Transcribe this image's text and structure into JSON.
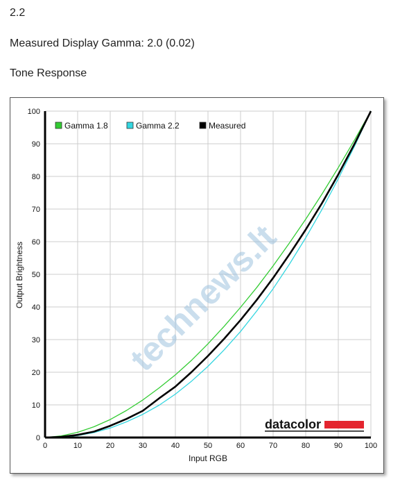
{
  "header": {
    "line1": "2.2",
    "line2": "Measured Display Gamma: 2.0 (0.02)",
    "line3": "Tone Response"
  },
  "logo": {
    "text": "datacolor",
    "bar_color": "#e4252f"
  },
  "watermark": {
    "text": "technews.lt"
  },
  "chart_data": {
    "type": "line",
    "xlabel": "Input RGB",
    "ylabel": "Output Brightness",
    "xlim": [
      0,
      100
    ],
    "ylim": [
      0,
      100
    ],
    "x_ticks": [
      0,
      10,
      20,
      30,
      40,
      50,
      60,
      70,
      80,
      90,
      100
    ],
    "y_ticks": [
      0,
      10,
      20,
      30,
      40,
      50,
      60,
      70,
      80,
      90,
      100
    ],
    "grid": true,
    "legend_position": "top-left",
    "x": [
      0,
      5,
      10,
      15,
      20,
      25,
      30,
      35,
      40,
      45,
      50,
      55,
      60,
      65,
      70,
      75,
      80,
      85,
      90,
      95,
      100
    ],
    "series": [
      {
        "name": "Gamma 1.8",
        "color": "#33cc33",
        "values": [
          0,
          0.5,
          1.6,
          3.3,
          5.5,
          8.3,
          11.5,
          15.2,
          19.2,
          23.7,
          28.7,
          34.1,
          39.9,
          46.0,
          52.6,
          59.6,
          66.9,
          74.6,
          82.7,
          91.2,
          100
        ]
      },
      {
        "name": "Gamma 2.2",
        "color": "#33d6e0",
        "values": [
          0,
          0.1,
          0.6,
          1.5,
          2.9,
          4.8,
          7.1,
          9.9,
          13.3,
          17.3,
          21.8,
          26.9,
          32.5,
          38.8,
          45.6,
          53.1,
          61.2,
          69.9,
          79.3,
          89.3,
          100
        ]
      },
      {
        "name": "Measured",
        "color": "#000000",
        "values": [
          0,
          0.2,
          0.8,
          1.8,
          3.6,
          5.7,
          8.2,
          12.0,
          15.6,
          20.1,
          25.0,
          30.3,
          36.0,
          42.2,
          48.9,
          56.1,
          63.7,
          71.8,
          80.6,
          90.0,
          100
        ]
      }
    ]
  }
}
